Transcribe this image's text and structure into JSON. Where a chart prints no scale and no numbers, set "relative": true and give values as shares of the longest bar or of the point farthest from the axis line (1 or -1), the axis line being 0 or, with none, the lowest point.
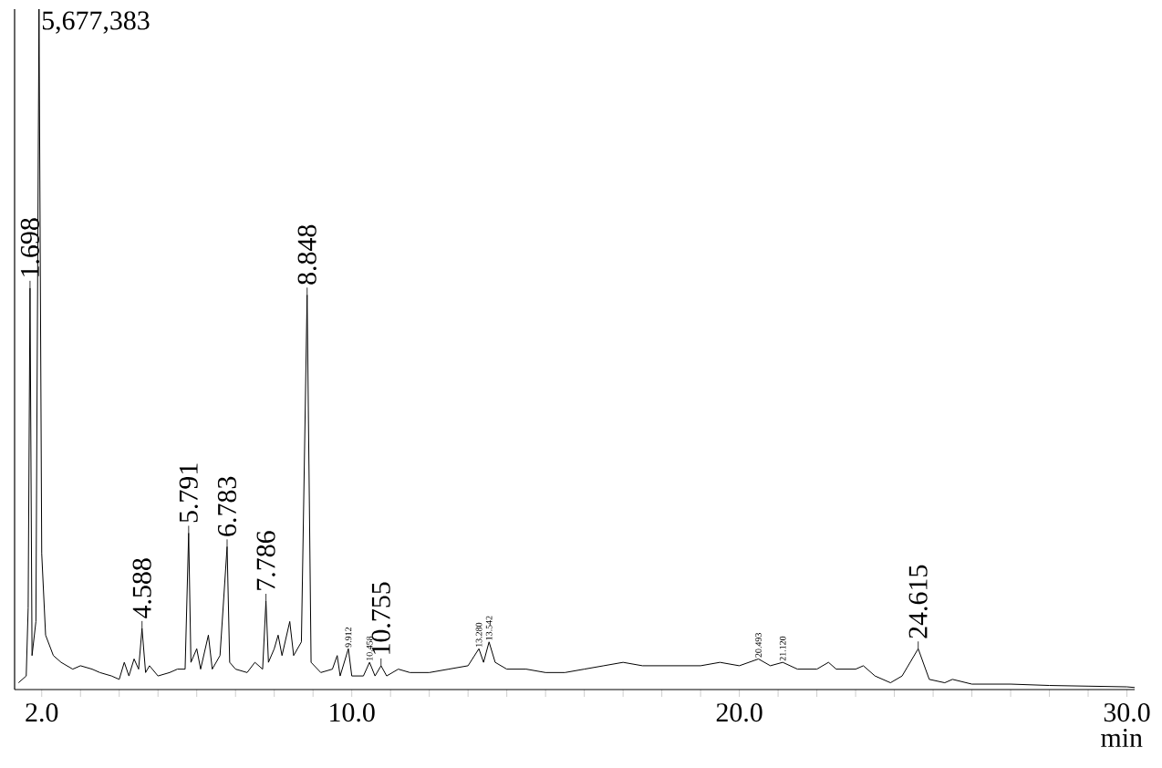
{
  "chart_data": {
    "type": "line",
    "relative": true,
    "xlabel": "min",
    "xlim": [
      1.3,
      30.2
    ],
    "xticks": [
      {
        "value": 2,
        "label": "2.0"
      },
      {
        "value": 3,
        "label": null
      },
      {
        "value": 4,
        "label": null
      },
      {
        "value": 5,
        "label": null
      },
      {
        "value": 6,
        "label": null
      },
      {
        "value": 7,
        "label": null
      },
      {
        "value": 8,
        "label": null
      },
      {
        "value": 9,
        "label": null
      },
      {
        "value": 10,
        "label": "10.0"
      },
      {
        "value": 11,
        "label": null
      },
      {
        "value": 12,
        "label": null
      },
      {
        "value": 13,
        "label": null
      },
      {
        "value": 14,
        "label": null
      },
      {
        "value": 15,
        "label": null
      },
      {
        "value": 16,
        "label": null
      },
      {
        "value": 17,
        "label": null
      },
      {
        "value": 18,
        "label": null
      },
      {
        "value": 19,
        "label": null
      },
      {
        "value": 20,
        "label": "20.0"
      },
      {
        "value": 21,
        "label": null
      },
      {
        "value": 22,
        "label": null
      },
      {
        "value": 23,
        "label": null
      },
      {
        "value": 24,
        "label": null
      },
      {
        "value": 25,
        "label": null
      },
      {
        "value": 26,
        "label": null
      },
      {
        "value": 27,
        "label": null
      },
      {
        "value": 28,
        "label": null
      },
      {
        "value": 29,
        "label": null
      },
      {
        "value": 30,
        "label": "30.0"
      }
    ],
    "series": [
      {
        "color": "#000000",
        "x": [
          1.4,
          1.6,
          1.65,
          1.698,
          1.75,
          1.85,
          1.93,
          2.0,
          2.1,
          2.3,
          2.5,
          2.8,
          3.0,
          3.3,
          3.5,
          3.8,
          4.0,
          4.13,
          4.25,
          4.383,
          4.5,
          4.588,
          4.68,
          4.78,
          5.0,
          5.3,
          5.5,
          5.7,
          5.791,
          5.85,
          6.0,
          6.1,
          6.3,
          6.4,
          6.6,
          6.783,
          6.85,
          7.0,
          7.3,
          7.5,
          7.7,
          7.786,
          7.85,
          8.0,
          8.1,
          8.2,
          8.4,
          8.5,
          8.7,
          8.848,
          8.95,
          9.2,
          9.5,
          9.624,
          9.7,
          9.912,
          10.0,
          10.3,
          10.458,
          10.6,
          10.755,
          10.9,
          11.2,
          11.5,
          12.0,
          12.5,
          13.0,
          13.28,
          13.4,
          13.542,
          13.7,
          14.0,
          14.5,
          15.0,
          15.5,
          16.0,
          16.5,
          17.0,
          17.5,
          18.0,
          18.5,
          19.0,
          19.5,
          20.0,
          20.493,
          20.8,
          21.12,
          21.5,
          22.0,
          22.3,
          22.5,
          23.0,
          23.2,
          23.5,
          23.9,
          24.2,
          24.615,
          24.9,
          25.3,
          25.5,
          26.0,
          27.0,
          28.0,
          29.0,
          30.0,
          30.2
        ],
        "values": [
          0.01,
          0.02,
          0.12,
          0.59,
          0.05,
          0.1,
          1.0,
          0.2,
          0.08,
          0.05,
          0.04,
          0.03,
          0.035,
          0.03,
          0.025,
          0.02,
          0.015,
          0.04,
          0.02,
          0.045,
          0.03,
          0.09,
          0.025,
          0.035,
          0.02,
          0.025,
          0.03,
          0.03,
          0.23,
          0.04,
          0.06,
          0.03,
          0.08,
          0.03,
          0.05,
          0.21,
          0.04,
          0.03,
          0.025,
          0.04,
          0.03,
          0.13,
          0.04,
          0.06,
          0.08,
          0.05,
          0.1,
          0.05,
          0.07,
          0.58,
          0.04,
          0.025,
          0.03,
          0.05,
          0.02,
          0.06,
          0.02,
          0.02,
          0.04,
          0.02,
          0.035,
          0.02,
          0.03,
          0.025,
          0.025,
          0.03,
          0.035,
          0.06,
          0.04,
          0.07,
          0.04,
          0.03,
          0.03,
          0.025,
          0.025,
          0.03,
          0.035,
          0.04,
          0.035,
          0.035,
          0.035,
          0.035,
          0.04,
          0.035,
          0.045,
          0.035,
          0.04,
          0.03,
          0.03,
          0.04,
          0.03,
          0.03,
          0.035,
          0.02,
          0.01,
          0.02,
          0.06,
          0.015,
          0.01,
          0.015,
          0.008,
          0.008,
          0.006,
          0.005,
          0.004,
          0.003
        ]
      }
    ],
    "annotations": [
      {
        "text": "5,677,383",
        "x": 1.93,
        "y": 1.0
      },
      {
        "text": "1.698",
        "x": 1.698,
        "y": 0.59
      },
      {
        "text": "4.588",
        "x": 4.588,
        "y": 0.09
      },
      {
        "text": "5.791",
        "x": 5.791,
        "y": 0.23
      },
      {
        "text": "6.783",
        "x": 6.783,
        "y": 0.21
      },
      {
        "text": "7.786",
        "x": 7.786,
        "y": 0.13
      },
      {
        "text": "8.848",
        "x": 8.848,
        "y": 0.58
      },
      {
        "text": "10.755",
        "x": 10.755,
        "y": 0.035
      },
      {
        "text": "24.615",
        "x": 24.615,
        "y": 0.06
      },
      {
        "text": "9.912",
        "x": 9.912,
        "y": 0.06
      },
      {
        "text": "10.458",
        "x": 10.458,
        "y": 0.04
      },
      {
        "text": "13.280",
        "x": 13.28,
        "y": 0.06
      },
      {
        "text": "13.542",
        "x": 13.542,
        "y": 0.07
      },
      {
        "text": "20.493",
        "x": 20.493,
        "y": 0.045
      },
      {
        "text": "21.120",
        "x": 21.12,
        "y": 0.04
      }
    ]
  }
}
